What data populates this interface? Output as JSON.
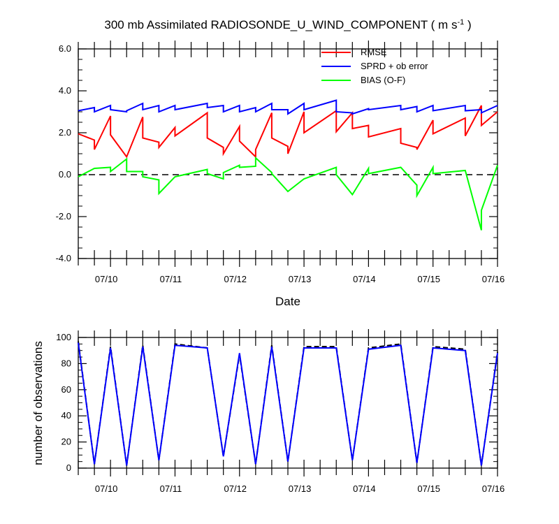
{
  "chart_data": [
    {
      "type": "line",
      "title": "300 mb Assimilated RADIOSONDE_U_WIND_COMPONENT ( m s",
      "title_unit_exp": "-1",
      "title_end": " )",
      "xlabel": "Date",
      "ylabel": "",
      "ylim": [
        -4.0,
        6.0
      ],
      "yticks": [
        "-4.0",
        "-2.0",
        "0.0",
        "2.0",
        "4.0",
        "6.0"
      ],
      "xlim": [
        9.5,
        16.0
      ],
      "xticks": [
        {
          "x": 10,
          "label": "07/10"
        },
        {
          "x": 11,
          "label": "07/11"
        },
        {
          "x": 12,
          "label": "07/12"
        },
        {
          "x": 13,
          "label": "07/13"
        },
        {
          "x": 14,
          "label": "07/14"
        },
        {
          "x": 15,
          "label": "07/15"
        },
        {
          "x": 16,
          "label": "07/16"
        }
      ],
      "zero_line": true,
      "legend_position": "top-right",
      "series": [
        {
          "name": "RMSE",
          "color": "#ff0000",
          "x": [
            9.5,
            9.75,
            9.75,
            10.0,
            10.0,
            10.25,
            10.25,
            10.5,
            10.5,
            10.75,
            10.75,
            11.0,
            11.0,
            11.5,
            11.5,
            11.75,
            11.75,
            12.0,
            12.0,
            12.25,
            12.25,
            12.5,
            12.5,
            12.75,
            12.75,
            13.0,
            13.0,
            13.5,
            13.5,
            13.75,
            13.75,
            14.0,
            14.0,
            14.5,
            14.5,
            14.75,
            14.75,
            15.0,
            15.0,
            15.5,
            15.5,
            15.75,
            15.75,
            16.0
          ],
          "y": [
            1.95,
            1.65,
            1.2,
            2.8,
            1.9,
            0.85,
            0.85,
            2.75,
            1.75,
            1.55,
            1.3,
            2.25,
            1.85,
            2.95,
            1.75,
            1.3,
            1.0,
            2.3,
            1.6,
            0.85,
            1.2,
            2.95,
            1.75,
            1.35,
            1.0,
            3.0,
            2.0,
            3.05,
            2.05,
            2.95,
            2.2,
            2.35,
            1.8,
            2.2,
            1.5,
            1.3,
            1.2,
            2.6,
            1.95,
            2.7,
            1.85,
            3.3,
            2.35,
            3.0
          ]
        },
        {
          "name": "SPRD + ob error",
          "color": "#0000ff",
          "x": [
            9.5,
            9.75,
            9.75,
            10.0,
            10.0,
            10.25,
            10.25,
            10.5,
            10.5,
            10.75,
            10.75,
            11.0,
            11.0,
            11.5,
            11.5,
            11.75,
            11.75,
            12.0,
            12.0,
            12.25,
            12.25,
            12.5,
            12.5,
            12.75,
            12.75,
            13.0,
            13.0,
            13.5,
            13.5,
            13.75,
            13.75,
            14.0,
            14.0,
            14.5,
            14.5,
            14.75,
            14.75,
            15.0,
            15.0,
            15.5,
            15.5,
            15.75,
            15.75,
            16.0
          ],
          "y": [
            3.05,
            3.2,
            3.0,
            3.3,
            3.1,
            3.0,
            3.05,
            3.4,
            3.1,
            3.3,
            3.0,
            3.3,
            3.1,
            3.4,
            3.2,
            3.3,
            3.0,
            3.3,
            3.0,
            3.2,
            3.0,
            3.4,
            3.1,
            3.1,
            2.9,
            3.4,
            3.1,
            3.55,
            3.0,
            2.95,
            2.9,
            3.15,
            3.1,
            3.3,
            3.1,
            3.25,
            3.0,
            3.3,
            3.05,
            3.3,
            3.05,
            3.1,
            2.95,
            3.3
          ]
        },
        {
          "name": "BIAS (O-F)",
          "color": "#00ff00",
          "x": [
            9.5,
            9.75,
            9.75,
            10.0,
            10.0,
            10.25,
            10.25,
            10.5,
            10.5,
            10.75,
            10.75,
            11.0,
            11.0,
            11.5,
            11.5,
            11.75,
            11.75,
            12.0,
            12.0,
            12.25,
            12.25,
            12.5,
            12.5,
            12.75,
            12.75,
            13.0,
            13.0,
            13.5,
            13.5,
            13.75,
            13.75,
            14.0,
            14.0,
            14.5,
            14.5,
            14.75,
            14.75,
            15.0,
            15.0,
            15.5,
            15.5,
            15.75,
            15.75,
            16.0
          ],
          "y": [
            -0.1,
            0.3,
            0.3,
            0.35,
            0.15,
            0.75,
            0.15,
            0.15,
            -0.1,
            -0.25,
            -0.9,
            -0.1,
            -0.1,
            0.25,
            0.05,
            -0.2,
            0.1,
            0.45,
            0.35,
            0.4,
            0.8,
            0.1,
            0.05,
            -0.8,
            -0.8,
            -0.2,
            -0.2,
            0.35,
            0.0,
            -0.95,
            -0.95,
            0.3,
            0.05,
            0.35,
            0.35,
            -0.5,
            -1.0,
            0.35,
            0.05,
            0.2,
            0.2,
            -2.65,
            -1.7,
            0.45
          ]
        }
      ]
    },
    {
      "type": "line",
      "title": "",
      "xlabel": "",
      "ylabel": "number of observations",
      "ylim": [
        0,
        100
      ],
      "yticks": [
        "0",
        "20",
        "40",
        "60",
        "80",
        "100"
      ],
      "xlim": [
        9.5,
        16.0
      ],
      "xticks": [
        {
          "x": 10,
          "label": "07/10"
        },
        {
          "x": 11,
          "label": "07/11"
        },
        {
          "x": 12,
          "label": "07/12"
        },
        {
          "x": 13,
          "label": "07/13"
        },
        {
          "x": 14,
          "label": "07/14"
        },
        {
          "x": 15,
          "label": "07/15"
        },
        {
          "x": 16,
          "label": "07/16"
        }
      ],
      "series": [
        {
          "color": "#000000",
          "dash": true,
          "x": [
            9.5,
            9.75,
            10.0,
            10.25,
            10.5,
            10.75,
            11.0,
            11.5,
            11.75,
            12.0,
            12.25,
            12.5,
            12.75,
            13.0,
            13.5,
            13.75,
            14.0,
            14.5,
            14.75,
            15.0,
            15.5,
            15.75,
            16.0
          ],
          "y": [
            97,
            3,
            93,
            2,
            94,
            6,
            95,
            92,
            9,
            87,
            3,
            94,
            5,
            93,
            93,
            6,
            92,
            95,
            4,
            93,
            91,
            2,
            89
          ]
        },
        {
          "color": "#0000ff",
          "dash": false,
          "x": [
            9.5,
            9.75,
            10.0,
            10.25,
            10.5,
            10.75,
            11.0,
            11.5,
            11.75,
            12.0,
            12.25,
            12.5,
            12.75,
            13.0,
            13.5,
            13.75,
            14.0,
            14.5,
            14.75,
            15.0,
            15.5,
            15.75,
            16.0
          ],
          "y": [
            96,
            3,
            92,
            2,
            93,
            6,
            94,
            92,
            9,
            88,
            3,
            93,
            5,
            92,
            92,
            6,
            91,
            94,
            4,
            92,
            90,
            2,
            88
          ]
        }
      ]
    }
  ]
}
